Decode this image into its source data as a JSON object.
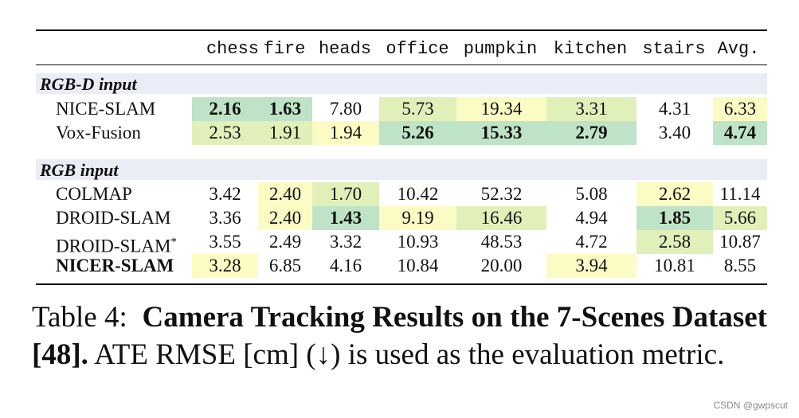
{
  "columns": [
    "chess",
    "fire",
    "heads",
    "office",
    "pumpkin",
    "kitchen",
    "stairs",
    "Avg."
  ],
  "colors": {
    "green": "#bfe3c6",
    "lightgreen": "#e1efb8",
    "yellow": "#fbfbc4",
    "section_band": "#eaecf6"
  },
  "sections": [
    {
      "label": "RGB-D input",
      "rows": [
        {
          "method": "NICE-SLAM",
          "method_bold": false,
          "cells": [
            {
              "v": "2.16",
              "bold": true,
              "hl": "green"
            },
            {
              "v": "1.63",
              "bold": true,
              "hl": "green"
            },
            {
              "v": "7.80",
              "bold": false,
              "hl": ""
            },
            {
              "v": "5.73",
              "bold": false,
              "hl": "lightgreen"
            },
            {
              "v": "19.34",
              "bold": false,
              "hl": "yellow"
            },
            {
              "v": "3.31",
              "bold": false,
              "hl": "lightgreen"
            },
            {
              "v": "4.31",
              "bold": false,
              "hl": ""
            },
            {
              "v": "6.33",
              "bold": false,
              "hl": "yellow"
            }
          ]
        },
        {
          "method": "Vox-Fusion",
          "method_bold": false,
          "cells": [
            {
              "v": "2.53",
              "bold": false,
              "hl": "lightgreen"
            },
            {
              "v": "1.91",
              "bold": false,
              "hl": "lightgreen"
            },
            {
              "v": "1.94",
              "bold": false,
              "hl": "yellow"
            },
            {
              "v": "5.26",
              "bold": true,
              "hl": "green"
            },
            {
              "v": "15.33",
              "bold": true,
              "hl": "green"
            },
            {
              "v": "2.79",
              "bold": true,
              "hl": "green"
            },
            {
              "v": "3.40",
              "bold": false,
              "hl": ""
            },
            {
              "v": "4.74",
              "bold": true,
              "hl": "green"
            }
          ]
        }
      ]
    },
    {
      "label": "RGB input",
      "rows": [
        {
          "method": "COLMAP",
          "method_bold": false,
          "cells": [
            {
              "v": "3.42",
              "bold": false,
              "hl": ""
            },
            {
              "v": "2.40",
              "bold": false,
              "hl": "yellow"
            },
            {
              "v": "1.70",
              "bold": false,
              "hl": "lightgreen"
            },
            {
              "v": "10.42",
              "bold": false,
              "hl": ""
            },
            {
              "v": "52.32",
              "bold": false,
              "hl": ""
            },
            {
              "v": "5.08",
              "bold": false,
              "hl": ""
            },
            {
              "v": "2.62",
              "bold": false,
              "hl": "yellow"
            },
            {
              "v": "11.14",
              "bold": false,
              "hl": ""
            }
          ]
        },
        {
          "method": "DROID-SLAM",
          "method_bold": false,
          "cells": [
            {
              "v": "3.36",
              "bold": false,
              "hl": ""
            },
            {
              "v": "2.40",
              "bold": false,
              "hl": "yellow"
            },
            {
              "v": "1.43",
              "bold": true,
              "hl": "green"
            },
            {
              "v": "9.19",
              "bold": false,
              "hl": "yellow"
            },
            {
              "v": "16.46",
              "bold": false,
              "hl": "lightgreen"
            },
            {
              "v": "4.94",
              "bold": false,
              "hl": ""
            },
            {
              "v": "1.85",
              "bold": true,
              "hl": "green"
            },
            {
              "v": "5.66",
              "bold": false,
              "hl": "lightgreen"
            }
          ]
        },
        {
          "method": "DROID-SLAM*",
          "method_bold": false,
          "cells": [
            {
              "v": "3.55",
              "bold": false,
              "hl": ""
            },
            {
              "v": "2.49",
              "bold": false,
              "hl": ""
            },
            {
              "v": "3.32",
              "bold": false,
              "hl": ""
            },
            {
              "v": "10.93",
              "bold": false,
              "hl": ""
            },
            {
              "v": "48.53",
              "bold": false,
              "hl": ""
            },
            {
              "v": "4.72",
              "bold": false,
              "hl": ""
            },
            {
              "v": "2.58",
              "bold": false,
              "hl": "lightgreen"
            },
            {
              "v": "10.87",
              "bold": false,
              "hl": ""
            }
          ]
        },
        {
          "method": "NICER-SLAM",
          "method_bold": true,
          "cells": [
            {
              "v": "3.28",
              "bold": false,
              "hl": "yellow"
            },
            {
              "v": "6.85",
              "bold": false,
              "hl": ""
            },
            {
              "v": "4.16",
              "bold": false,
              "hl": ""
            },
            {
              "v": "10.84",
              "bold": false,
              "hl": ""
            },
            {
              "v": "20.00",
              "bold": false,
              "hl": ""
            },
            {
              "v": "3.94",
              "bold": false,
              "hl": "yellow"
            },
            {
              "v": "10.81",
              "bold": false,
              "hl": ""
            },
            {
              "v": "8.55",
              "bold": false,
              "hl": ""
            }
          ]
        }
      ]
    }
  ],
  "caption": {
    "prefix": "Table 4:",
    "bold": "Camera Tracking Results on the 7-Scenes Dataset [48].",
    "rest": "ATE RMSE [cm] (↓) is used as the evaluation metric."
  },
  "watermark": "CSDN @gwpscut"
}
